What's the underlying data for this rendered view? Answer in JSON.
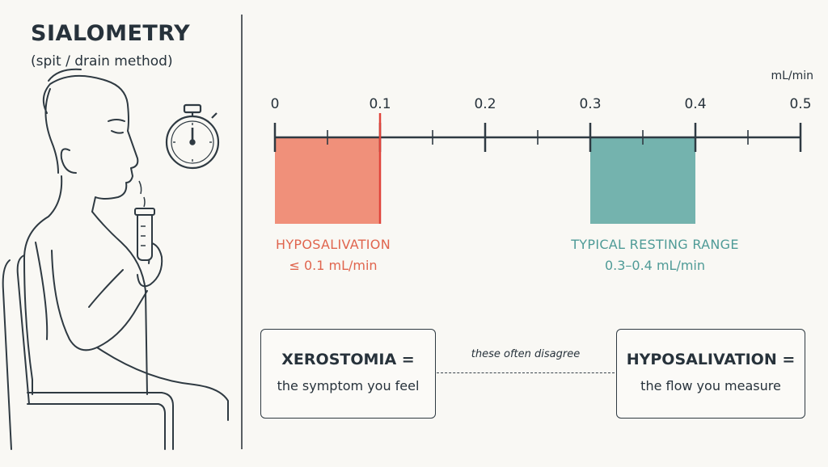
{
  "header": {
    "title": "SIALOMETRY",
    "subtitle": "(spit / drain method)"
  },
  "illustration": {
    "person": "person-spitting",
    "timer": "stopwatch-icon",
    "tube": "collection-tube-icon"
  },
  "scale": {
    "unit": "mL/min",
    "ticks": [
      "0",
      "0.1",
      "0.2",
      "0.3",
      "0.4",
      "0.5"
    ],
    "min": 0,
    "max": 0.5,
    "bands": [
      {
        "from": 0,
        "to": 0.1,
        "color": "#f0907a",
        "marker_color": "#e0443b"
      },
      {
        "from": 0.3,
        "to": 0.4,
        "color": "#74b3ae"
      }
    ]
  },
  "labels": {
    "hypo_title": "HYPOSALIVATION",
    "hypo_value": "≤ 0.1 mL/min",
    "typical_title": "TYPICAL RESTING RANGE",
    "typical_value": "0.3–0.4 mL/min"
  },
  "boxes": {
    "left_title": "XEROSTOMIA =",
    "left_text": "the symptom you feel",
    "right_title": "HYPOSALIVATION =",
    "right_text": "the flow you measure",
    "connector_text": "these often disagree"
  },
  "colors": {
    "hyposalivation": "#e0654e",
    "typical": "#4f9b97",
    "line": "#2f3a42"
  }
}
